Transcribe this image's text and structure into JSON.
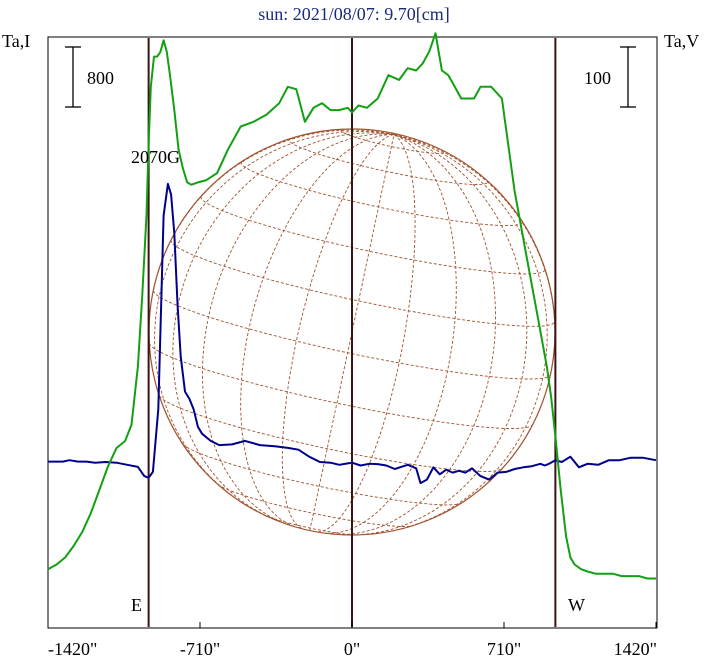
{
  "title": "sun: 2021/08/07: 9.70[cm]",
  "left_axis_label": "Ta,I",
  "right_axis_label": "Ta,V",
  "left_scale_bar": "800",
  "right_scale_bar": "100",
  "east_label": "E",
  "west_label": "W",
  "annotation": "2070G",
  "colors": {
    "title": "#1a2a7a",
    "intensity": "#00008b",
    "polarization": "#12a012",
    "grid": "#a0522d",
    "limb_lines": "#3c1414",
    "frame": "#000000"
  },
  "chart_data": {
    "type": "line",
    "title": "sun: 2021/08/07: 9.70[cm]",
    "xlim": [
      -1420,
      1420
    ],
    "x_ticks": [
      -1420,
      -710,
      0,
      710,
      1420
    ],
    "x_tick_labels": [
      "-1420\"",
      "-710\"",
      "0\"",
      "710\"",
      "1420\""
    ],
    "limb_markers": [
      -950,
      0,
      950
    ],
    "series": [
      {
        "name": "Ta,I",
        "color": "#00008b",
        "x": [
          -1420,
          -1350,
          -1320,
          -1280,
          -1240,
          -1200,
          -1150,
          -1100,
          -1050,
          -1000,
          -970,
          -950,
          -930,
          -905,
          -880,
          -860,
          -845,
          -830,
          -815,
          -800,
          -780,
          -760,
          -740,
          -720,
          -700,
          -660,
          -620,
          -560,
          -500,
          -430,
          -360,
          -300,
          -250,
          -200,
          -150,
          -100,
          -60,
          -20,
          0,
          40,
          80,
          120,
          160,
          200,
          260,
          300,
          320,
          350,
          380,
          410,
          440,
          470,
          500,
          530,
          560,
          600,
          640,
          680,
          720,
          760,
          800,
          840,
          880,
          900,
          920,
          950,
          980,
          1020,
          1060,
          1100,
          1150,
          1200,
          1250,
          1300,
          1360,
          1420
        ],
        "y": [
          1,
          1,
          5,
          1,
          1,
          -2,
          0,
          -2,
          -8,
          -14,
          -40,
          -45,
          -28,
          150,
          700,
          790,
          760,
          650,
          450,
          300,
          200,
          180,
          150,
          100,
          80,
          60,
          48,
          50,
          60,
          48,
          45,
          40,
          35,
          15,
          0,
          -2,
          -8,
          -4,
          -2,
          -10,
          -5,
          -6,
          -10,
          -20,
          -8,
          -18,
          -60,
          -50,
          -15,
          -35,
          -22,
          -30,
          -25,
          -30,
          -18,
          -40,
          -50,
          -30,
          -28,
          -20,
          -15,
          -12,
          -5,
          -10,
          -5,
          5,
          0,
          15,
          -15,
          -5,
          -8,
          5,
          5,
          12,
          12,
          5
        ]
      },
      {
        "name": "Ta,V",
        "color": "#12a012",
        "x": [
          -1420,
          -1380,
          -1340,
          -1300,
          -1260,
          -1220,
          -1180,
          -1140,
          -1100,
          -1060,
          -1030,
          -1000,
          -980,
          -960,
          -950,
          -940,
          -925,
          -910,
          -895,
          -880,
          -865,
          -850,
          -830,
          -810,
          -790,
          -770,
          -750,
          -720,
          -680,
          -630,
          -580,
          -520,
          -460,
          -400,
          -340,
          -300,
          -260,
          -220,
          -180,
          -140,
          -100,
          -60,
          -20,
          0,
          30,
          70,
          120,
          170,
          220,
          260,
          300,
          330,
          360,
          390,
          420,
          450,
          480,
          510,
          540,
          570,
          600,
          650,
          700,
          760,
          820,
          870,
          910,
          930,
          950,
          975,
          1000,
          1020,
          1040,
          1070,
          1100,
          1140,
          1180,
          1220,
          1260,
          1300,
          1340,
          1380,
          1420
        ],
        "y": [
          -52,
          -50,
          -47,
          -42,
          -36,
          -28,
          -18,
          -8,
          0,
          3,
          10,
          35,
          65,
          100,
          130,
          155,
          168,
          168,
          170,
          175,
          170,
          160,
          145,
          128,
          120,
          114,
          113,
          114,
          115,
          118,
          128,
          138,
          140,
          143,
          148,
          155,
          154,
          140,
          146,
          148,
          145,
          145,
          146,
          144,
          147,
          146,
          150,
          160,
          158,
          163,
          162,
          165,
          170,
          178,
          162,
          160,
          155,
          150,
          150,
          150,
          155,
          155,
          150,
          110,
          80,
          55,
          35,
          22,
          5,
          -18,
          -38,
          -47,
          -50,
          -52,
          -53,
          -54,
          -54,
          -54,
          -55,
          -55,
          -55,
          -56,
          -56
        ]
      }
    ]
  }
}
